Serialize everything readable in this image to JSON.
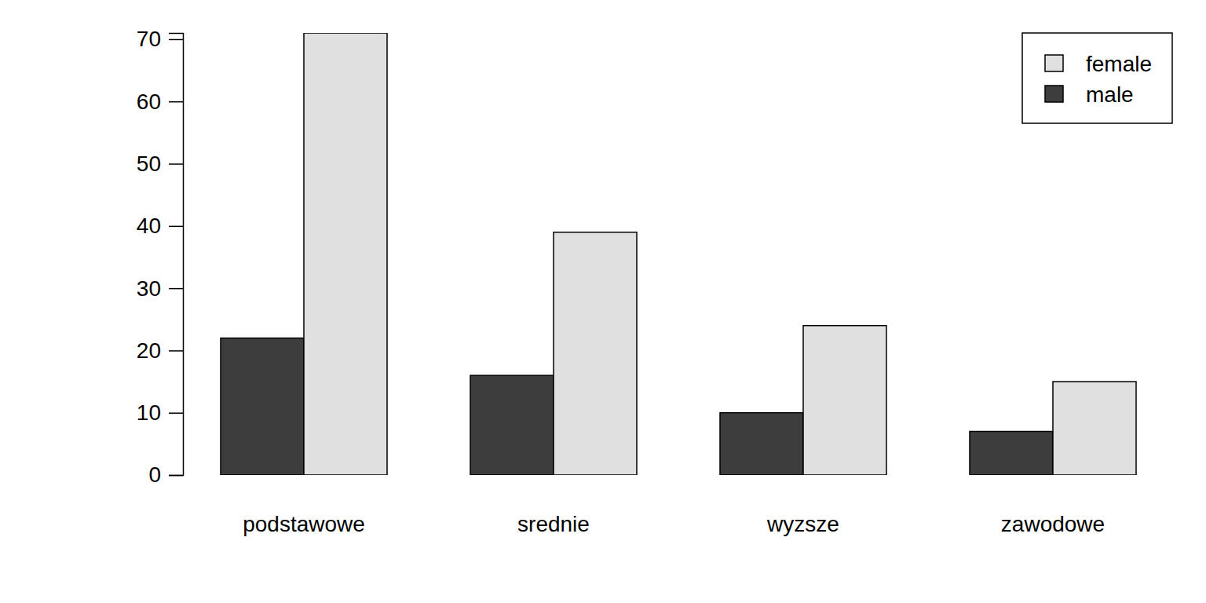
{
  "chart_data": {
    "type": "bar",
    "categories": [
      "podstawowe",
      "srednie",
      "wyzsze",
      "zawodowe"
    ],
    "series": [
      {
        "name": "male",
        "color": "#3d3d3d",
        "values": [
          22,
          16,
          10,
          7
        ]
      },
      {
        "name": "female",
        "color": "#e0e0e0",
        "values": [
          71,
          39,
          24,
          15
        ]
      }
    ],
    "ylim": [
      0,
      71
    ],
    "yticks": [
      0,
      10,
      20,
      30,
      40,
      50,
      60,
      70
    ],
    "grid": false,
    "legend": "topright"
  }
}
